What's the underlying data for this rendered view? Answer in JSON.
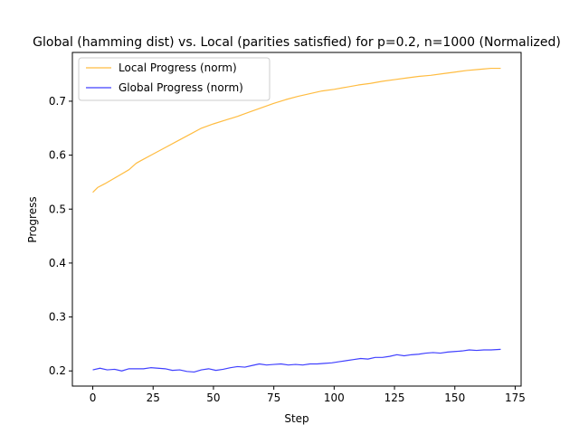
{
  "chart_data": {
    "type": "line",
    "title": "Global (hamming dist) vs. Local (parities satisfied) for p=0.2, n=1000 (Normalized)",
    "xlabel": "Step",
    "ylabel": "Progress",
    "xlim": [
      -8.45,
      177.45
    ],
    "ylim": [
      0.1719,
      0.7904
    ],
    "xticks": [
      0,
      25,
      50,
      75,
      100,
      125,
      150,
      175
    ],
    "yticks": [
      0.2,
      0.3,
      0.4,
      0.5,
      0.6,
      0.7
    ],
    "grid": false,
    "legend_position": "top-left",
    "series": [
      {
        "name": "Local Progress (norm)",
        "color": "#FFA500",
        "x": [
          0,
          2,
          5,
          10,
          15,
          18,
          20,
          25,
          30,
          35,
          40,
          45,
          50,
          55,
          60,
          65,
          70,
          75,
          80,
          85,
          90,
          95,
          100,
          105,
          110,
          115,
          120,
          125,
          130,
          135,
          140,
          145,
          150,
          155,
          160,
          165,
          169
        ],
        "y": [
          0.531,
          0.54,
          0.547,
          0.56,
          0.573,
          0.585,
          0.59,
          0.602,
          0.614,
          0.626,
          0.638,
          0.65,
          0.658,
          0.665,
          0.672,
          0.68,
          0.688,
          0.696,
          0.703,
          0.709,
          0.714,
          0.719,
          0.722,
          0.726,
          0.73,
          0.733,
          0.737,
          0.74,
          0.743,
          0.746,
          0.748,
          0.751,
          0.754,
          0.757,
          0.759,
          0.761,
          0.761
        ]
      },
      {
        "name": "Global Progress (norm)",
        "color": "#0000FF",
        "x": [
          0,
          3,
          6,
          9,
          12,
          15,
          18,
          21,
          24,
          27,
          30,
          33,
          36,
          39,
          42,
          45,
          48,
          51,
          54,
          57,
          60,
          63,
          66,
          69,
          72,
          75,
          78,
          81,
          84,
          87,
          90,
          93,
          96,
          99,
          102,
          105,
          108,
          111,
          114,
          117,
          120,
          123,
          126,
          129,
          132,
          135,
          138,
          141,
          144,
          147,
          150,
          153,
          156,
          159,
          162,
          165,
          169
        ],
        "y": [
          0.202,
          0.205,
          0.202,
          0.203,
          0.2,
          0.204,
          0.204,
          0.204,
          0.206,
          0.205,
          0.204,
          0.201,
          0.202,
          0.199,
          0.198,
          0.202,
          0.204,
          0.201,
          0.203,
          0.206,
          0.208,
          0.207,
          0.21,
          0.213,
          0.211,
          0.212,
          0.213,
          0.211,
          0.212,
          0.211,
          0.213,
          0.213,
          0.214,
          0.215,
          0.217,
          0.219,
          0.221,
          0.223,
          0.222,
          0.225,
          0.225,
          0.227,
          0.23,
          0.228,
          0.23,
          0.231,
          0.233,
          0.234,
          0.233,
          0.235,
          0.236,
          0.237,
          0.239,
          0.238,
          0.239,
          0.239,
          0.24
        ]
      }
    ]
  }
}
